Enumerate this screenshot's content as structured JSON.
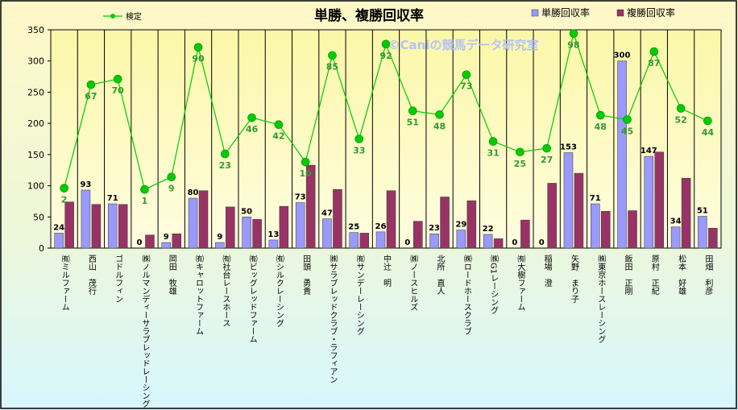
{
  "chart_data": {
    "type": "bar",
    "title": "単勝、複勝回収率",
    "watermark": "©Caniの競馬データ研究室",
    "xlabel": "",
    "ylabel": "",
    "ylim": [
      0,
      350
    ],
    "yticks": [
      0,
      50,
      100,
      150,
      200,
      250,
      300,
      350
    ],
    "grid": "vertical",
    "legend_position": "top",
    "categories": [
      "㈲ミルファーム",
      "西山　茂行",
      "ゴドルフィン",
      "㈱ノルマンディーサラブレッドレーシング",
      "岡田　牧雄",
      "㈲キャロットファーム",
      "㈲社台レースホース",
      "㈲ビッグレッドファーム",
      "㈲シルクレーシング",
      "田頭　勇貴",
      "㈱サラブレッドクラブ・ラフィアン",
      "㈲サンデーレーシング",
      "中辻　明",
      "㈱ノースヒルズ",
      "北所　直人",
      "㈱ロードホースクラブ",
      "㈱G1レーシング",
      "㈲大樹ファーム",
      "稲場　澄",
      "矢野　まり子",
      "㈱東京ホースレーシング",
      "飯田　正剛",
      "原村　正紀",
      "松本　好雄",
      "田畑　利彦"
    ],
    "series": [
      {
        "name": "単勝回収率",
        "kind": "bar",
        "color": "#9999ff",
        "values": [
          24,
          93,
          71,
          0,
          9,
          80,
          9,
          50,
          13,
          73,
          47,
          25,
          26,
          0,
          23,
          29,
          22,
          0,
          0,
          153,
          71,
          300,
          147,
          34,
          51
        ],
        "value_labels": [
          "24",
          "93",
          "71",
          "0",
          "9",
          "80",
          "9",
          "50",
          "13",
          "73",
          "47",
          "25",
          "26",
          "0",
          "23",
          "29",
          "22",
          "0",
          "0",
          "153",
          "71",
          "300",
          "147",
          "34",
          "51"
        ]
      },
      {
        "name": "複勝回収率",
        "kind": "bar",
        "color": "#993366",
        "values": [
          74,
          70,
          70,
          21,
          23,
          92,
          66,
          46,
          67,
          133,
          94,
          24,
          92,
          43,
          82,
          76,
          15,
          45,
          104,
          120,
          59,
          60,
          154,
          112,
          32
        ]
      },
      {
        "name": "検定",
        "kind": "line",
        "color": "#00cc00",
        "values": [
          96,
          262,
          271,
          94,
          114,
          322,
          151,
          209,
          198,
          138,
          309,
          175,
          327,
          220,
          214,
          278,
          171,
          154,
          160,
          344,
          213,
          206,
          315,
          224,
          204
        ],
        "value_labels": [
          "2",
          "67",
          "70",
          "1",
          "9",
          "90",
          "23",
          "46",
          "42",
          "10",
          "85",
          "33",
          "92",
          "51",
          "48",
          "73",
          "31",
          "25",
          "27",
          "98",
          "48",
          "45",
          "87",
          "52",
          "44"
        ]
      }
    ]
  },
  "colors": {
    "frame": "#000000",
    "grid": "#000000",
    "line_label": "#339933"
  }
}
